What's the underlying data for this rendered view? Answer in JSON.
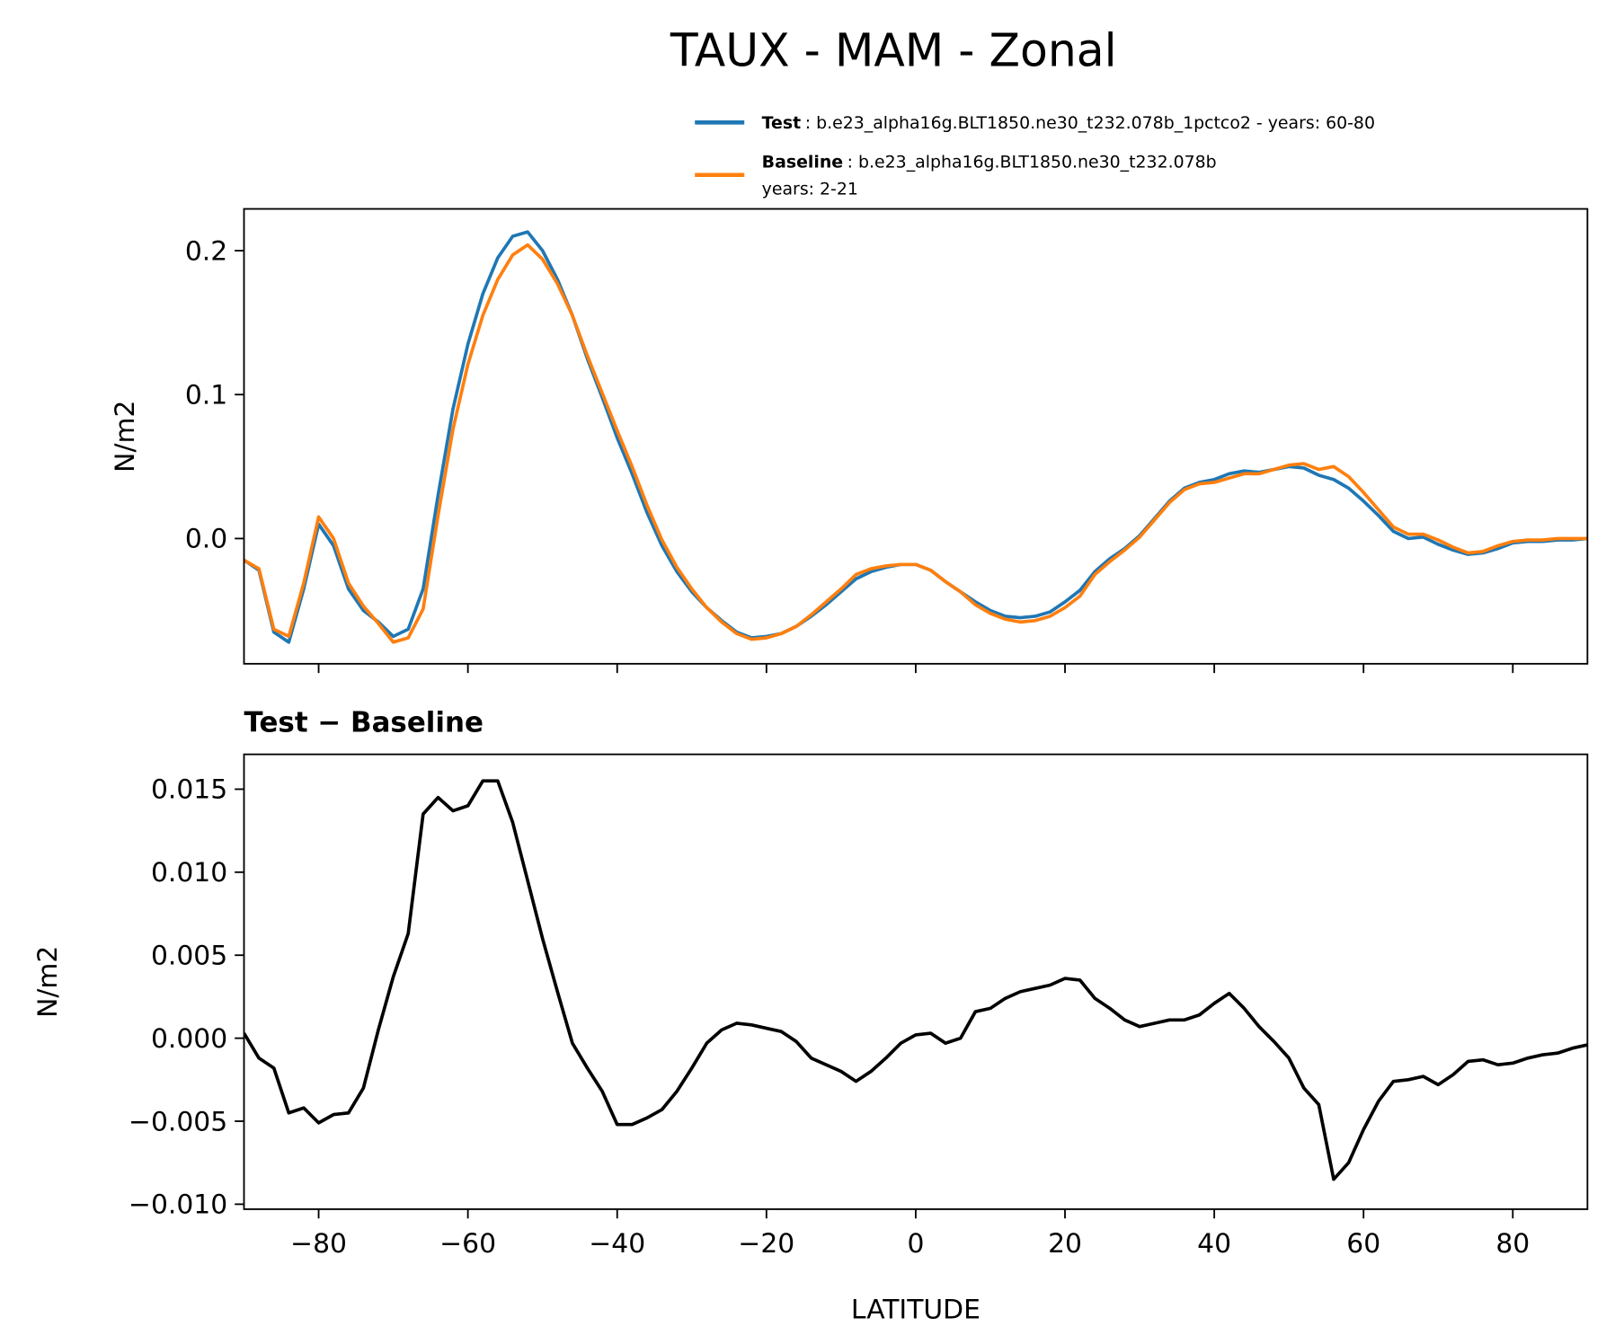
{
  "chart_data": [
    {
      "type": "line",
      "title": "TAUX - MAM - Zonal",
      "ylabel": "N/m2",
      "x": [
        -90,
        -88,
        -86,
        -84,
        -82,
        -80,
        -78,
        -76,
        -74,
        -72,
        -70,
        -68,
        -66,
        -64,
        -62,
        -60,
        -58,
        -56,
        -54,
        -52,
        -50,
        -48,
        -46,
        -44,
        -42,
        -40,
        -38,
        -36,
        -34,
        -32,
        -30,
        -28,
        -26,
        -24,
        -22,
        -20,
        -18,
        -16,
        -14,
        -12,
        -10,
        -8,
        -6,
        -4,
        -2,
        0,
        2,
        4,
        6,
        8,
        10,
        12,
        14,
        16,
        18,
        20,
        22,
        24,
        26,
        28,
        30,
        32,
        34,
        36,
        38,
        40,
        42,
        44,
        46,
        48,
        50,
        52,
        54,
        56,
        58,
        60,
        62,
        64,
        66,
        68,
        70,
        72,
        74,
        76,
        78,
        80,
        82,
        84,
        86,
        88,
        90
      ],
      "series": [
        {
          "name": "Test",
          "description": [
            ": b.e23_alpha16g.BLT1850.ne30_t232.078b_1pctco2 - years: 60-80"
          ],
          "color": "#1f77b4",
          "values": [
            -0.015,
            -0.022,
            -0.065,
            -0.072,
            -0.035,
            0.01,
            -0.005,
            -0.035,
            -0.05,
            -0.058,
            -0.068,
            -0.063,
            -0.035,
            0.03,
            0.09,
            0.135,
            0.17,
            0.195,
            0.21,
            0.213,
            0.2,
            0.18,
            0.155,
            0.125,
            0.098,
            0.07,
            0.045,
            0.018,
            -0.005,
            -0.023,
            -0.037,
            -0.048,
            -0.057,
            -0.065,
            -0.069,
            -0.068,
            -0.066,
            -0.061,
            -0.054,
            -0.046,
            -0.037,
            -0.028,
            -0.023,
            -0.02,
            -0.018,
            -0.018,
            -0.022,
            -0.03,
            -0.037,
            -0.044,
            -0.05,
            -0.054,
            -0.055,
            -0.054,
            -0.051,
            -0.044,
            -0.036,
            -0.023,
            -0.014,
            -0.007,
            0.002,
            0.014,
            0.026,
            0.035,
            0.039,
            0.041,
            0.045,
            0.047,
            0.046,
            0.048,
            0.05,
            0.049,
            0.044,
            0.041,
            0.035,
            0.026,
            0.016,
            0.005,
            0.0,
            0.001,
            -0.004,
            -0.008,
            -0.011,
            -0.01,
            -0.007,
            -0.003,
            -0.002,
            -0.002,
            -0.001,
            -0.001,
            0.0
          ]
        },
        {
          "name": "Baseline",
          "description": [
            ": b.e23_alpha16g.BLT1850.ne30_t232.078b",
            "years: 2-21"
          ],
          "color": "#ff7f0e",
          "values": [
            -0.015,
            -0.021,
            -0.063,
            -0.068,
            -0.031,
            0.015,
            0.0,
            -0.031,
            -0.047,
            -0.059,
            -0.072,
            -0.069,
            -0.049,
            0.016,
            0.076,
            0.121,
            0.155,
            0.18,
            0.197,
            0.204,
            0.194,
            0.177,
            0.155,
            0.127,
            0.101,
            0.075,
            0.05,
            0.023,
            -0.001,
            -0.02,
            -0.035,
            -0.048,
            -0.058,
            -0.066,
            -0.07,
            -0.069,
            -0.066,
            -0.061,
            -0.053,
            -0.044,
            -0.035,
            -0.025,
            -0.021,
            -0.019,
            -0.018,
            -0.018,
            -0.022,
            -0.03,
            -0.037,
            -0.046,
            -0.052,
            -0.056,
            -0.058,
            -0.057,
            -0.054,
            -0.048,
            -0.04,
            -0.025,
            -0.016,
            -0.008,
            0.001,
            0.013,
            0.025,
            0.034,
            0.038,
            0.039,
            0.042,
            0.045,
            0.045,
            0.048,
            0.051,
            0.052,
            0.048,
            0.05,
            0.043,
            0.032,
            0.02,
            0.008,
            0.003,
            0.003,
            -0.001,
            -0.006,
            -0.01,
            -0.009,
            -0.005,
            -0.002,
            -0.001,
            -0.001,
            0.0,
            0.0,
            0.0
          ]
        }
      ],
      "xlim": [
        -90,
        90
      ],
      "xticks": [
        -80,
        -60,
        -40,
        -20,
        0,
        20,
        40,
        60,
        80
      ],
      "ylim": [
        -0.087,
        0.229
      ],
      "yticks": [
        {
          "value": 0,
          "label": "0.0"
        },
        0.1,
        0.2
      ]
    },
    {
      "type": "line",
      "title": "Test − Baseline",
      "ylabel": "N/m2",
      "xlabel": "LATITUDE",
      "x": [
        -90,
        -88,
        -86,
        -84,
        -82,
        -80,
        -78,
        -76,
        -74,
        -72,
        -70,
        -68,
        -66,
        -64,
        -62,
        -60,
        -58,
        -56,
        -54,
        -52,
        -50,
        -48,
        -46,
        -44,
        -42,
        -40,
        -38,
        -36,
        -34,
        -32,
        -30,
        -28,
        -26,
        -24,
        -22,
        -20,
        -18,
        -16,
        -14,
        -12,
        -10,
        -8,
        -6,
        -4,
        -2,
        0,
        2,
        4,
        6,
        8,
        10,
        12,
        14,
        16,
        18,
        20,
        22,
        24,
        26,
        28,
        30,
        32,
        34,
        36,
        38,
        40,
        42,
        44,
        46,
        48,
        50,
        52,
        54,
        56,
        58,
        60,
        62,
        64,
        66,
        68,
        70,
        72,
        74,
        76,
        78,
        80,
        82,
        84,
        86,
        88,
        90
      ],
      "color": "#000000",
      "values": [
        0.0003,
        -0.0012,
        -0.0018,
        -0.0045,
        -0.0042,
        -0.0051,
        -0.0046,
        -0.0045,
        -0.003,
        0.0005,
        0.0037,
        0.0063,
        0.0135,
        0.0145,
        0.0137,
        0.014,
        0.0155,
        0.0155,
        0.013,
        0.0095,
        0.006,
        0.0028,
        -0.0003,
        -0.0018,
        -0.0032,
        -0.0052,
        -0.0052,
        -0.0048,
        -0.0043,
        -0.0032,
        -0.0018,
        -0.0003,
        0.0005,
        0.0009,
        0.0008,
        0.0006,
        0.0004,
        -0.0002,
        -0.0012,
        -0.0016,
        -0.002,
        -0.0026,
        -0.002,
        -0.0012,
        -0.0003,
        0.0002,
        0.0003,
        -0.0003,
        0.0,
        0.0016,
        0.0018,
        0.0024,
        0.0028,
        0.003,
        0.0032,
        0.0036,
        0.0035,
        0.0024,
        0.0018,
        0.0011,
        0.0007,
        0.0009,
        0.0011,
        0.0011,
        0.0014,
        0.0021,
        0.0027,
        0.0018,
        0.0007,
        -0.0002,
        -0.0012,
        -0.003,
        -0.004,
        -0.0085,
        -0.0075,
        -0.0055,
        -0.0038,
        -0.0026,
        -0.0025,
        -0.0023,
        -0.0028,
        -0.0022,
        -0.0014,
        -0.0013,
        -0.0016,
        -0.0015,
        -0.0012,
        -0.001,
        -0.0009,
        -0.0006,
        -0.0004
      ],
      "xlim": [
        -90,
        90
      ],
      "xticks": [
        {
          "value": -80,
          "label": "−80"
        },
        {
          "value": -60,
          "label": "−60"
        },
        {
          "value": -40,
          "label": "−40"
        },
        {
          "value": -20,
          "label": "−20"
        },
        0,
        20,
        40,
        60,
        80
      ],
      "ylim": [
        -0.0103,
        0.0171
      ],
      "yticks": [
        {
          "value": -0.01,
          "label": "−0.010"
        },
        {
          "value": -0.005,
          "label": "−0.005"
        },
        {
          "value": 0,
          "label": "0.000"
        },
        0.005,
        {
          "value": 0.01,
          "label": "0.010"
        },
        0.015
      ]
    }
  ]
}
